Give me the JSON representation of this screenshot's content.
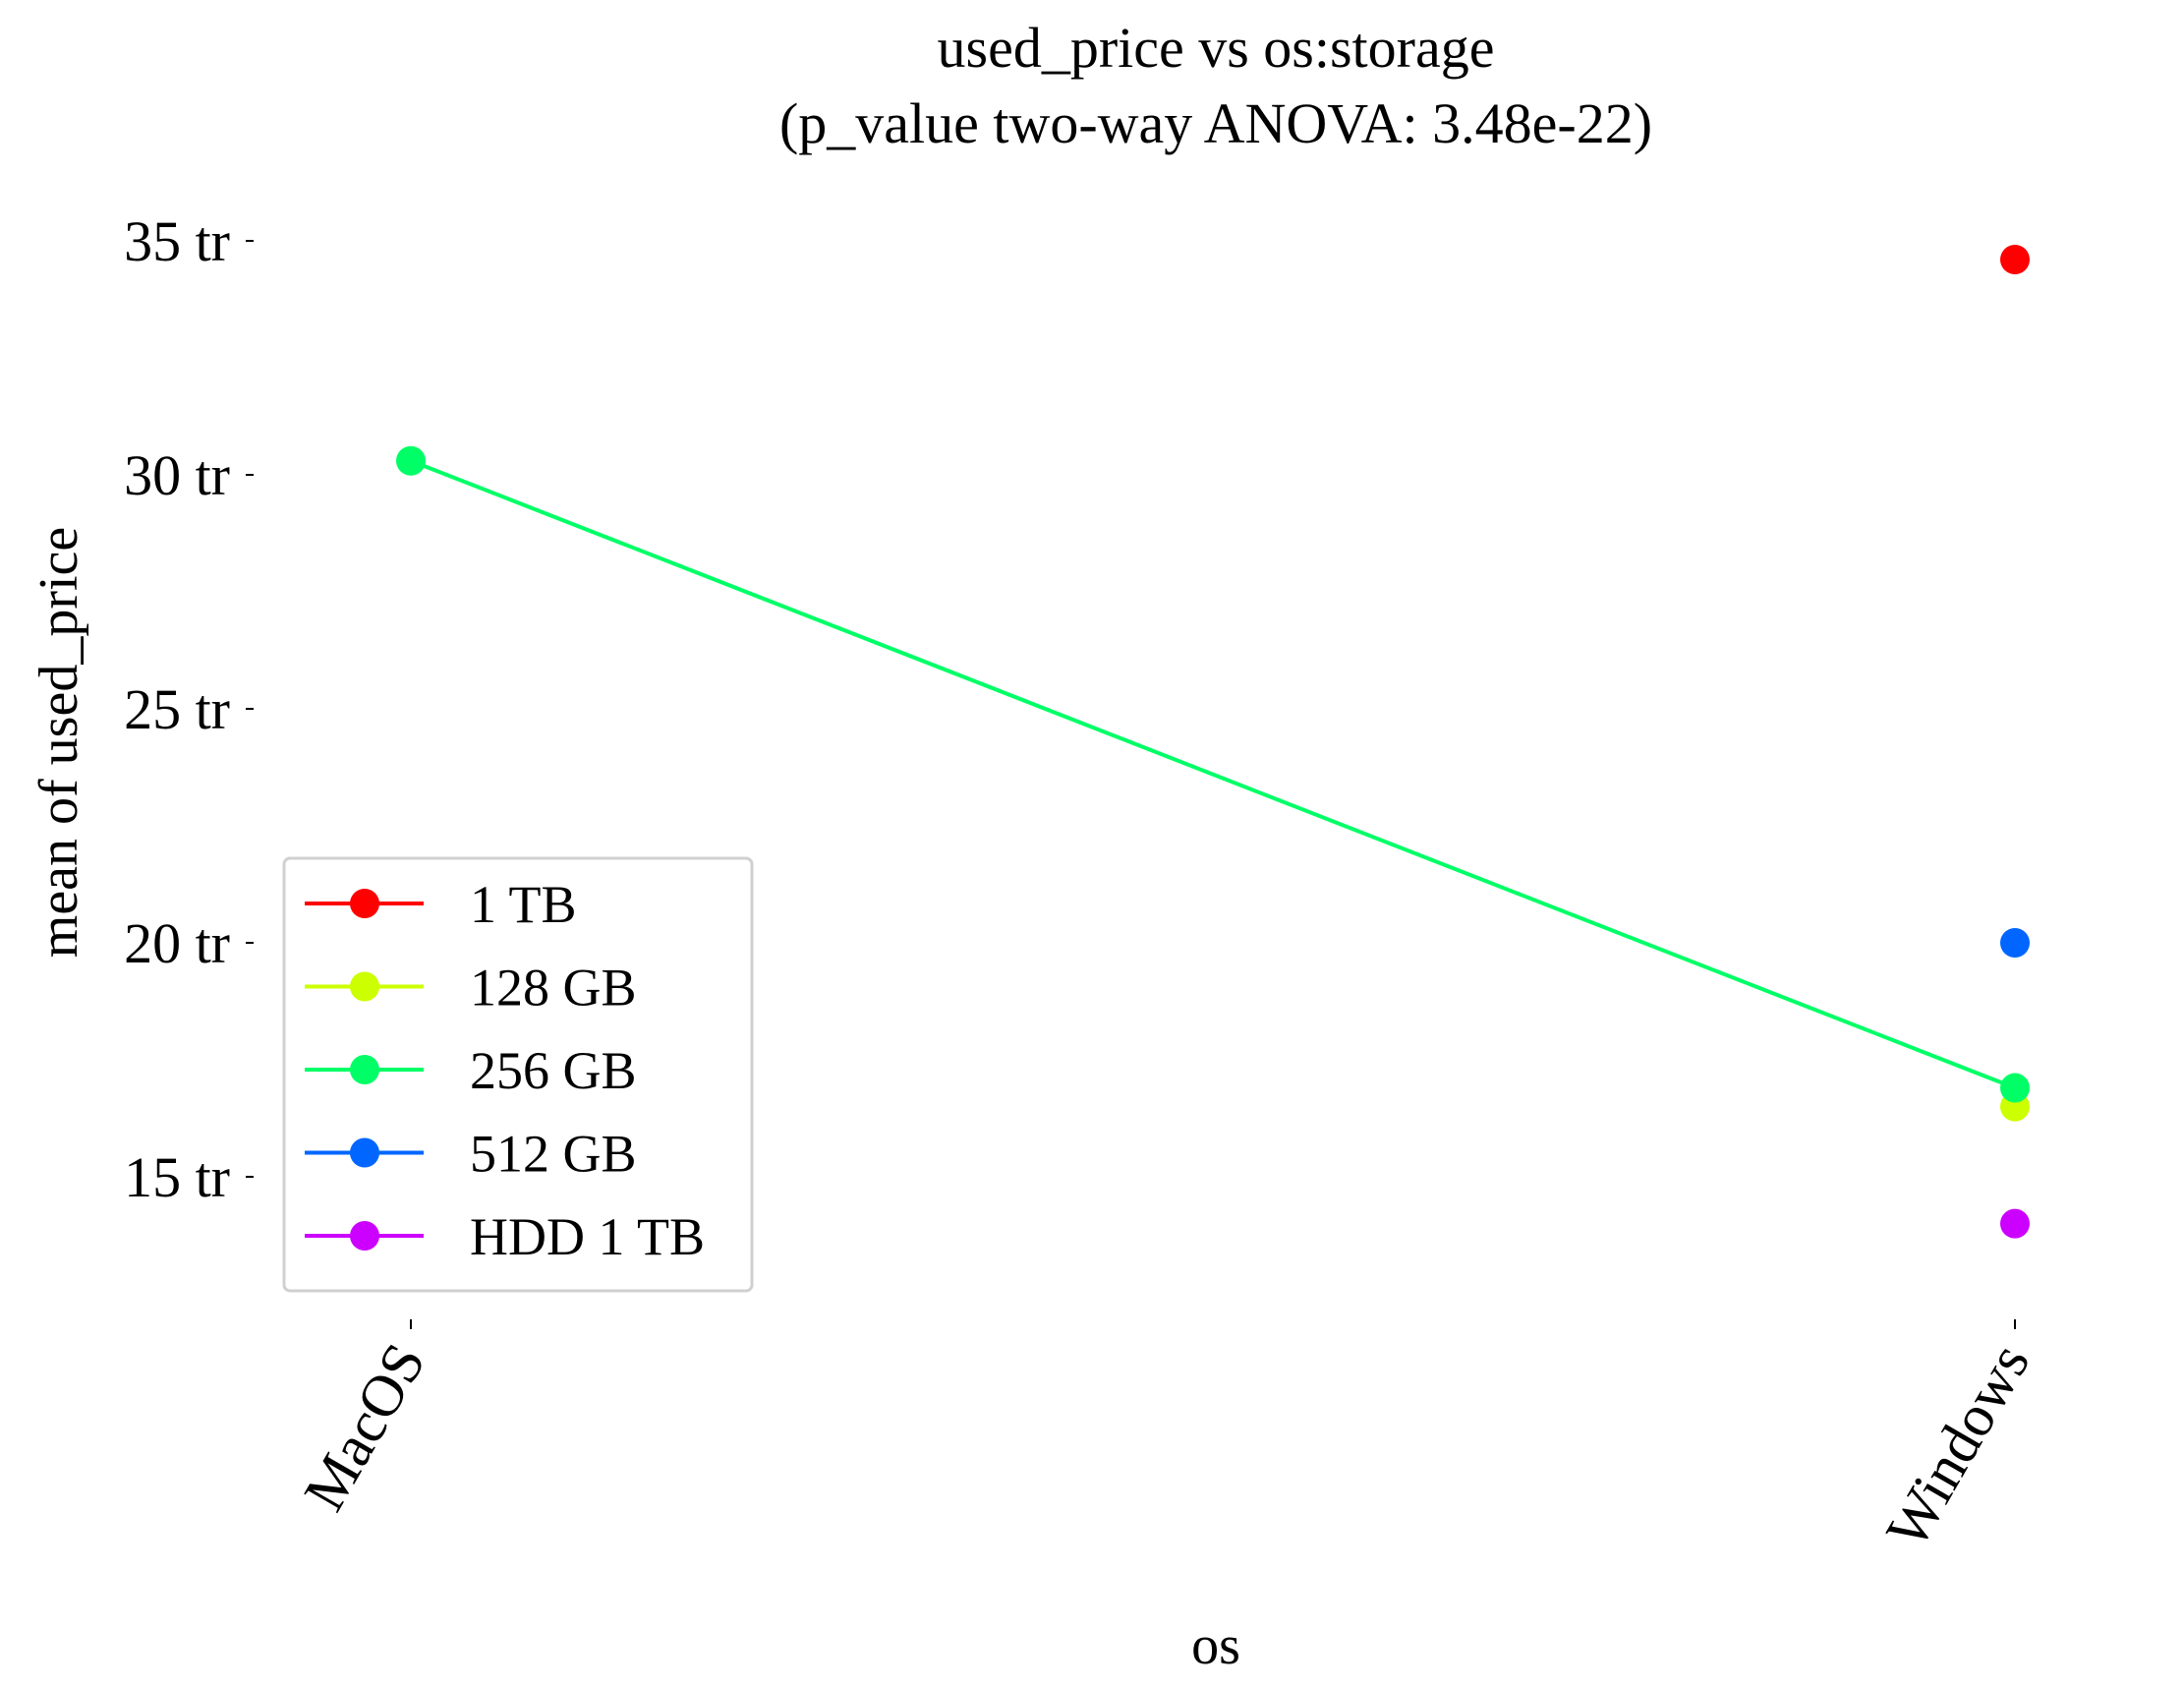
{
  "chart_data": {
    "type": "line",
    "title": "used_price vs os:storage",
    "subtitle": "(p_value two-way ANOVA: 3.48e-22)",
    "xlabel": "os",
    "ylabel": "mean of used_price",
    "categories": [
      "MacOS",
      "Windows"
    ],
    "ylim": [
      12.2,
      36.8
    ],
    "y_ticks": [
      15,
      20,
      25,
      30,
      35
    ],
    "y_tick_labels": [
      "15 tr",
      "20 tr",
      "25 tr",
      "30 tr",
      "35 tr"
    ],
    "y_unit": "tr",
    "grid": false,
    "legend_position": "lower-left",
    "series": [
      {
        "name": "1 TB",
        "color": "#ff0000",
        "values": [
          null,
          34.6
        ]
      },
      {
        "name": "128 GB",
        "color": "#ccff00",
        "values": [
          null,
          16.5
        ]
      },
      {
        "name": "256 GB",
        "color": "#00ff66",
        "values": [
          30.3,
          16.9
        ]
      },
      {
        "name": "512 GB",
        "color": "#0066ff",
        "values": [
          null,
          20.0
        ]
      },
      {
        "name": "HDD 1 TB",
        "color": "#cc00ff",
        "values": [
          null,
          14.0
        ]
      }
    ]
  }
}
